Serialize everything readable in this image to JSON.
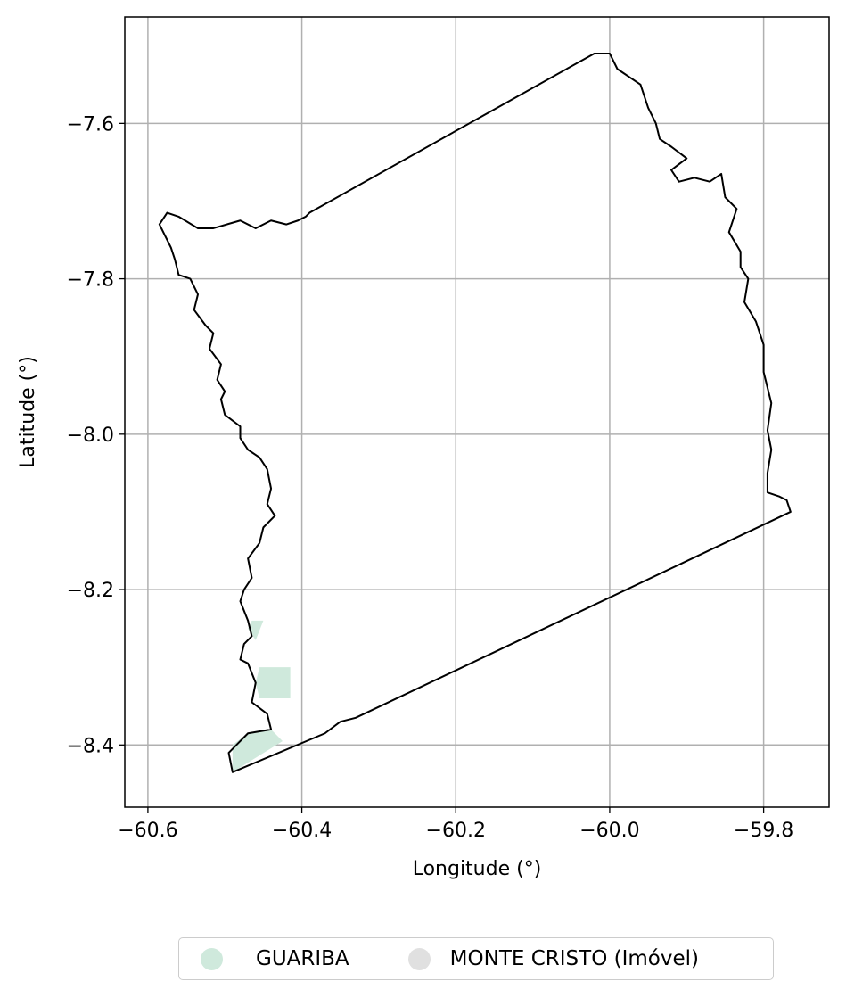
{
  "chart_data": {
    "type": "map",
    "xlabel": "Longitude (°)",
    "ylabel": "Latitude (°)",
    "xlim": [
      -60.63,
      -59.715
    ],
    "ylim": [
      -8.48,
      -7.463
    ],
    "x_ticks": [
      -60.6,
      -60.4,
      -60.2,
      -60.0,
      -59.8
    ],
    "x_tick_labels": [
      "−60.6",
      "−60.4",
      "−60.2",
      "−60.0",
      "−59.8"
    ],
    "y_ticks": [
      -7.6,
      -7.8,
      -8.0,
      -8.2,
      -8.4
    ],
    "y_tick_labels": [
      "−7.6",
      "−7.8",
      "−8.0",
      "−8.2",
      "−8.4"
    ],
    "grid": true,
    "legend_placement": "bottom-center",
    "outline_color": "#000000",
    "boundary": [
      [
        -60.39,
        -7.715
      ],
      [
        -60.02,
        -7.51
      ],
      [
        -60.0,
        -7.51
      ],
      [
        -59.99,
        -7.53
      ],
      [
        -59.96,
        -7.55
      ],
      [
        -59.95,
        -7.58
      ],
      [
        -59.94,
        -7.6
      ],
      [
        -59.935,
        -7.62
      ],
      [
        -59.92,
        -7.63
      ],
      [
        -59.9,
        -7.645
      ],
      [
        -59.92,
        -7.66
      ],
      [
        -59.91,
        -7.675
      ],
      [
        -59.89,
        -7.67
      ],
      [
        -59.87,
        -7.675
      ],
      [
        -59.855,
        -7.665
      ],
      [
        -59.85,
        -7.695
      ],
      [
        -59.835,
        -7.71
      ],
      [
        -59.845,
        -7.74
      ],
      [
        -59.83,
        -7.765
      ],
      [
        -59.83,
        -7.785
      ],
      [
        -59.82,
        -7.8
      ],
      [
        -59.825,
        -7.83
      ],
      [
        -59.81,
        -7.855
      ],
      [
        -59.8,
        -7.885
      ],
      [
        -59.8,
        -7.92
      ],
      [
        -59.79,
        -7.96
      ],
      [
        -59.795,
        -7.995
      ],
      [
        -59.79,
        -8.02
      ],
      [
        -59.795,
        -8.05
      ],
      [
        -59.795,
        -8.075
      ],
      [
        -59.78,
        -8.08
      ],
      [
        -59.77,
        -8.085
      ],
      [
        -59.765,
        -8.1
      ],
      [
        -60.33,
        -8.365
      ],
      [
        -60.35,
        -8.37
      ],
      [
        -60.37,
        -8.385
      ],
      [
        -60.49,
        -8.435
      ],
      [
        -60.495,
        -8.41
      ],
      [
        -60.48,
        -8.395
      ],
      [
        -60.47,
        -8.385
      ],
      [
        -60.44,
        -8.38
      ],
      [
        -60.445,
        -8.36
      ],
      [
        -60.465,
        -8.345
      ],
      [
        -60.46,
        -8.32
      ],
      [
        -60.47,
        -8.295
      ],
      [
        -60.48,
        -8.29
      ],
      [
        -60.475,
        -8.27
      ],
      [
        -60.465,
        -8.26
      ],
      [
        -60.47,
        -8.24
      ],
      [
        -60.48,
        -8.215
      ],
      [
        -60.475,
        -8.2
      ],
      [
        -60.465,
        -8.185
      ],
      [
        -60.47,
        -8.16
      ],
      [
        -60.455,
        -8.14
      ],
      [
        -60.45,
        -8.12
      ],
      [
        -60.435,
        -8.105
      ],
      [
        -60.445,
        -8.09
      ],
      [
        -60.44,
        -8.07
      ],
      [
        -60.445,
        -8.045
      ],
      [
        -60.455,
        -8.03
      ],
      [
        -60.47,
        -8.02
      ],
      [
        -60.48,
        -8.005
      ],
      [
        -60.48,
        -7.99
      ],
      [
        -60.5,
        -7.975
      ],
      [
        -60.505,
        -7.955
      ],
      [
        -60.5,
        -7.945
      ],
      [
        -60.51,
        -7.93
      ],
      [
        -60.505,
        -7.91
      ],
      [
        -60.52,
        -7.89
      ],
      [
        -60.515,
        -7.87
      ],
      [
        -60.525,
        -7.86
      ],
      [
        -60.54,
        -7.84
      ],
      [
        -60.535,
        -7.82
      ],
      [
        -60.545,
        -7.8
      ],
      [
        -60.56,
        -7.795
      ],
      [
        -60.565,
        -7.775
      ],
      [
        -60.57,
        -7.76
      ],
      [
        -60.585,
        -7.73
      ],
      [
        -60.575,
        -7.715
      ],
      [
        -60.56,
        -7.72
      ],
      [
        -60.535,
        -7.735
      ],
      [
        -60.515,
        -7.735
      ],
      [
        -60.48,
        -7.725
      ],
      [
        -60.46,
        -7.735
      ],
      [
        -60.44,
        -7.725
      ],
      [
        -60.42,
        -7.73
      ],
      [
        -60.405,
        -7.725
      ],
      [
        -60.395,
        -7.72
      ]
    ],
    "series": [
      {
        "name": "GUARIBA",
        "color": "#cfe9dc",
        "polygons": [
          [
            [
              -60.45,
              -8.24
            ],
            [
              -60.465,
              -8.24
            ],
            [
              -60.47,
              -8.25
            ],
            [
              -60.46,
              -8.265
            ]
          ],
          [
            [
              -60.415,
              -8.3
            ],
            [
              -60.455,
              -8.3
            ],
            [
              -60.46,
              -8.32
            ],
            [
              -60.455,
              -8.34
            ],
            [
              -60.415,
              -8.34
            ]
          ],
          [
            [
              -60.425,
              -8.395
            ],
            [
              -60.44,
              -8.38
            ],
            [
              -60.47,
              -8.385
            ],
            [
              -60.49,
              -8.4
            ],
            [
              -60.49,
              -8.435
            ]
          ]
        ]
      },
      {
        "name": "MONTE CRISTO (Imóvel)",
        "color": "#e0e0e0",
        "polygons": []
      }
    ]
  }
}
